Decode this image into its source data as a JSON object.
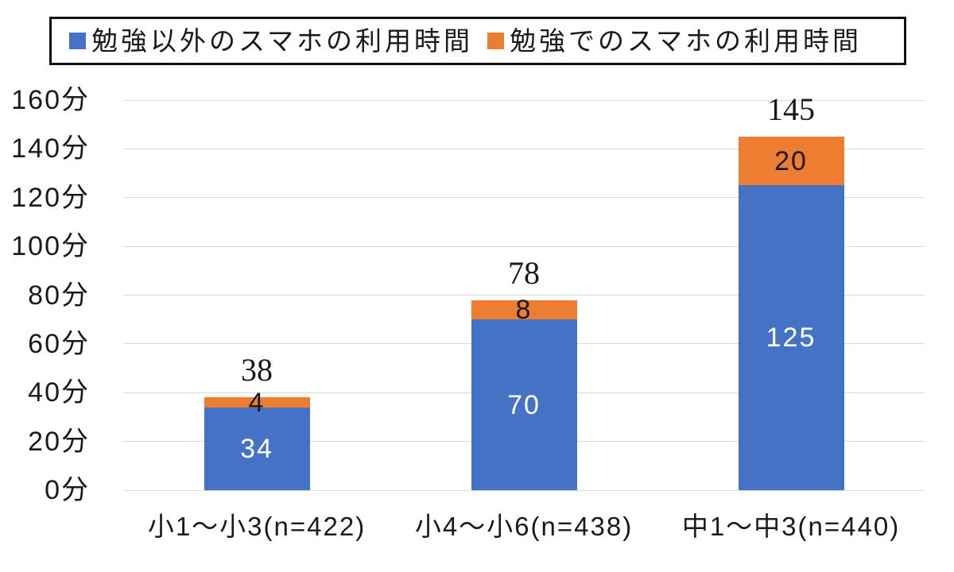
{
  "chart_data": {
    "type": "bar",
    "stacked": true,
    "title": "",
    "categories": [
      "小1～小3(n=422)",
      "小4～小6(n=438)",
      "中1～中3(n=440)"
    ],
    "series": [
      {
        "name": "勉強以外のスマホの利用時間",
        "color": "#4472C4",
        "label_color": "#FFFFFF",
        "values": [
          34,
          70,
          125
        ]
      },
      {
        "name": "勉強でのスマホの利用時間",
        "color": "#ED7D31",
        "label_color": "#1A1A1A",
        "values": [
          4,
          8,
          20
        ]
      }
    ],
    "totals": [
      38,
      78,
      145
    ],
    "y_axis": {
      "min": 0,
      "max": 160,
      "step": 20,
      "tick_suffix": "分",
      "tick_labels": [
        "0分",
        "20分",
        "40分",
        "60分",
        "80分",
        "100分",
        "120分",
        "140分",
        "160分"
      ]
    },
    "grid": true,
    "gridline_color": "#D9D9D9",
    "legend_position": "top",
    "legend_border_color": "#111111",
    "text_color": "#1A1A1A",
    "background": "#FFFFFF"
  }
}
